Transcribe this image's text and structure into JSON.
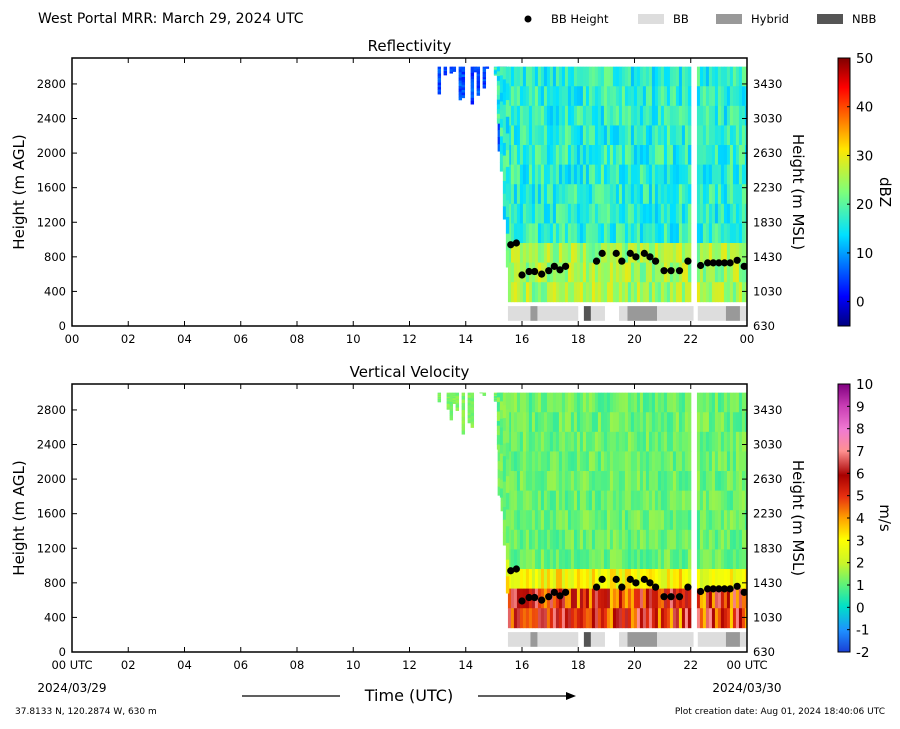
{
  "header": {
    "title": "West Portal MRR:  March 29, 2024 UTC"
  },
  "legend": {
    "entries": [
      {
        "label": "BB Height",
        "kind": "dot",
        "color": "#000000"
      },
      {
        "label": "BB",
        "kind": "bar",
        "color": "#dddddd"
      },
      {
        "label": "Hybrid",
        "kind": "bar",
        "color": "#999999"
      },
      {
        "label": "NBB",
        "kind": "bar",
        "color": "#555555"
      }
    ]
  },
  "footer": {
    "location": "37.8133 N, 120.2874 W, 630 m",
    "creation": "Plot creation date: Aug 01, 2024 18:40:06 UTC",
    "xlabel": "Time (UTC)",
    "date_start": "2024/03/29",
    "date_end": "2024/03/30"
  },
  "chart_data": [
    {
      "type": "heatmap",
      "title": "Reflectivity",
      "ylabel": "Height (m AGL)",
      "ylabel_right": "Height (m MSL)",
      "xlim": [
        0,
        24
      ],
      "ylim": [
        0,
        3100
      ],
      "yticks": [
        0,
        400,
        800,
        1200,
        1600,
        2000,
        2400,
        2800
      ],
      "yticks_right": [
        630,
        1030,
        1430,
        1830,
        2230,
        2630,
        3030,
        3430
      ],
      "xtick_labels": [
        "00",
        "02",
        "04",
        "06",
        "08",
        "10",
        "12",
        "14",
        "16",
        "18",
        "20",
        "22",
        "00"
      ],
      "colorbar": {
        "label": "dBZ",
        "min": -5,
        "max": 50,
        "ticks": [
          0,
          10,
          20,
          30,
          40,
          50
        ],
        "colormap": "jet"
      },
      "data_start_hour": 15.5,
      "bb_height": [
        {
          "t": 15.6,
          "h": 940
        },
        {
          "t": 15.8,
          "h": 960
        },
        {
          "t": 16.0,
          "h": 590
        },
        {
          "t": 16.25,
          "h": 630
        },
        {
          "t": 16.45,
          "h": 630
        },
        {
          "t": 16.7,
          "h": 600
        },
        {
          "t": 16.95,
          "h": 640
        },
        {
          "t": 17.15,
          "h": 690
        },
        {
          "t": 17.35,
          "h": 650
        },
        {
          "t": 17.55,
          "h": 690
        },
        {
          "t": 18.65,
          "h": 750
        },
        {
          "t": 18.85,
          "h": 840
        },
        {
          "t": 19.35,
          "h": 840
        },
        {
          "t": 19.55,
          "h": 750
        },
        {
          "t": 19.85,
          "h": 840
        },
        {
          "t": 20.05,
          "h": 800
        },
        {
          "t": 20.35,
          "h": 840
        },
        {
          "t": 20.55,
          "h": 800
        },
        {
          "t": 20.75,
          "h": 750
        },
        {
          "t": 21.05,
          "h": 640
        },
        {
          "t": 21.3,
          "h": 640
        },
        {
          "t": 21.6,
          "h": 640
        },
        {
          "t": 21.9,
          "h": 750
        },
        {
          "t": 22.35,
          "h": 700
        },
        {
          "t": 22.6,
          "h": 730
        },
        {
          "t": 22.8,
          "h": 730
        },
        {
          "t": 23.0,
          "h": 730
        },
        {
          "t": 23.2,
          "h": 730
        },
        {
          "t": 23.4,
          "h": 730
        },
        {
          "t": 23.65,
          "h": 760
        },
        {
          "t": 23.9,
          "h": 690
        }
      ],
      "bb_type": [
        {
          "start": 15.5,
          "end": 16.3,
          "type": "BB"
        },
        {
          "start": 16.3,
          "end": 16.55,
          "type": "Hybrid"
        },
        {
          "start": 16.55,
          "end": 18.0,
          "type": "BB"
        },
        {
          "start": 18.2,
          "end": 18.45,
          "type": "NBB"
        },
        {
          "start": 18.45,
          "end": 18.95,
          "type": "BB"
        },
        {
          "start": 19.45,
          "end": 19.75,
          "type": "BB"
        },
        {
          "start": 19.75,
          "end": 20.8,
          "type": "Hybrid"
        },
        {
          "start": 20.8,
          "end": 22.1,
          "type": "BB"
        },
        {
          "start": 22.25,
          "end": 23.25,
          "type": "BB"
        },
        {
          "start": 23.25,
          "end": 23.75,
          "type": "Hybrid"
        },
        {
          "start": 23.75,
          "end": 24.0,
          "type": "BB"
        }
      ]
    },
    {
      "type": "heatmap",
      "title": "Vertical Velocity",
      "ylabel": "Height (m AGL)",
      "ylabel_right": "Height (m MSL)",
      "xlim": [
        0,
        24
      ],
      "ylim": [
        0,
        3100
      ],
      "yticks": [
        0,
        400,
        800,
        1200,
        1600,
        2000,
        2400,
        2800
      ],
      "yticks_right": [
        630,
        1030,
        1430,
        1830,
        2230,
        2630,
        3030,
        3430
      ],
      "xtick_labels": [
        "00 UTC",
        "02",
        "04",
        "06",
        "08",
        "10",
        "12",
        "14",
        "16",
        "18",
        "20",
        "22",
        "00 UTC"
      ],
      "colorbar": {
        "label": "m/s",
        "min": -2,
        "max": 10,
        "ticks": [
          -2,
          -1,
          0,
          1,
          2,
          3,
          4,
          5,
          6,
          7,
          8,
          9,
          10
        ],
        "colormap": "velocity"
      },
      "data_start_hour": 15.5,
      "bb_height": [
        {
          "t": 15.6,
          "h": 940
        },
        {
          "t": 15.8,
          "h": 960
        },
        {
          "t": 16.0,
          "h": 590
        },
        {
          "t": 16.25,
          "h": 630
        },
        {
          "t": 16.45,
          "h": 630
        },
        {
          "t": 16.7,
          "h": 600
        },
        {
          "t": 16.95,
          "h": 640
        },
        {
          "t": 17.15,
          "h": 690
        },
        {
          "t": 17.35,
          "h": 650
        },
        {
          "t": 17.55,
          "h": 690
        },
        {
          "t": 18.65,
          "h": 750
        },
        {
          "t": 18.85,
          "h": 840
        },
        {
          "t": 19.35,
          "h": 840
        },
        {
          "t": 19.55,
          "h": 750
        },
        {
          "t": 19.85,
          "h": 840
        },
        {
          "t": 20.05,
          "h": 800
        },
        {
          "t": 20.35,
          "h": 840
        },
        {
          "t": 20.55,
          "h": 800
        },
        {
          "t": 20.75,
          "h": 750
        },
        {
          "t": 21.05,
          "h": 640
        },
        {
          "t": 21.3,
          "h": 640
        },
        {
          "t": 21.6,
          "h": 640
        },
        {
          "t": 21.9,
          "h": 750
        },
        {
          "t": 22.35,
          "h": 700
        },
        {
          "t": 22.6,
          "h": 730
        },
        {
          "t": 22.8,
          "h": 730
        },
        {
          "t": 23.0,
          "h": 730
        },
        {
          "t": 23.2,
          "h": 730
        },
        {
          "t": 23.4,
          "h": 730
        },
        {
          "t": 23.65,
          "h": 760
        },
        {
          "t": 23.9,
          "h": 690
        }
      ],
      "bb_type": [
        {
          "start": 15.5,
          "end": 16.3,
          "type": "BB"
        },
        {
          "start": 16.3,
          "end": 16.55,
          "type": "Hybrid"
        },
        {
          "start": 16.55,
          "end": 18.0,
          "type": "BB"
        },
        {
          "start": 18.2,
          "end": 18.45,
          "type": "NBB"
        },
        {
          "start": 18.45,
          "end": 18.95,
          "type": "BB"
        },
        {
          "start": 19.45,
          "end": 19.75,
          "type": "BB"
        },
        {
          "start": 19.75,
          "end": 20.8,
          "type": "Hybrid"
        },
        {
          "start": 20.8,
          "end": 22.1,
          "type": "BB"
        },
        {
          "start": 22.25,
          "end": 23.25,
          "type": "BB"
        },
        {
          "start": 23.25,
          "end": 23.75,
          "type": "Hybrid"
        },
        {
          "start": 23.75,
          "end": 24.0,
          "type": "BB"
        }
      ]
    }
  ]
}
